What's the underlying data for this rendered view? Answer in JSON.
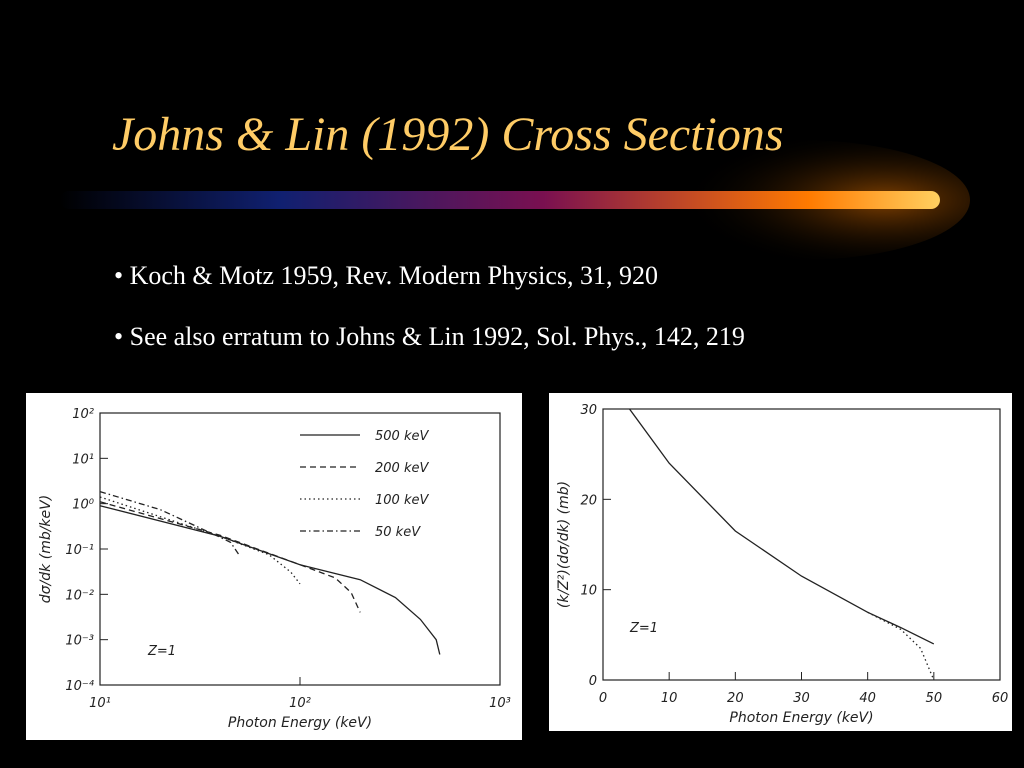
{
  "slide": {
    "title": "Johns & Lin (1992) Cross Sections",
    "bullets": [
      "• Koch & Motz 1959, Rev. Modern Physics, 31, 920",
      "• See also erratum to Johns & Lin 1992, Sol. Phys., 142, 219"
    ]
  },
  "chart_data": [
    {
      "type": "line",
      "xscale": "log",
      "yscale": "log",
      "x_label": "Photon Energy (keV)",
      "y_label": "dσ/dk (mb/keV)",
      "annotation": "Z=1",
      "xlim": [
        10,
        1000
      ],
      "ylim": [
        0.0001,
        100
      ],
      "xticks": [
        {
          "value": 10,
          "label": "10¹"
        },
        {
          "value": 100,
          "label": "10²"
        },
        {
          "value": 1000,
          "label": "10³"
        }
      ],
      "yticks": [
        {
          "value": 0.0001,
          "label": "10⁻⁴"
        },
        {
          "value": 0.001,
          "label": "10⁻³"
        },
        {
          "value": 0.01,
          "label": "10⁻²"
        },
        {
          "value": 0.1,
          "label": "10⁻¹"
        },
        {
          "value": 1,
          "label": "10⁰"
        },
        {
          "value": 10,
          "label": "10¹"
        },
        {
          "value": 100,
          "label": "10²"
        }
      ],
      "legend": "upper right",
      "series": [
        {
          "name": "500 keV",
          "dash": "solid",
          "color": "#222222",
          "x": [
            10,
            40,
            100,
            200,
            300,
            400,
            480,
            500
          ],
          "values": [
            0.9,
            0.19,
            0.045,
            0.021,
            0.0085,
            0.0028,
            0.001,
            0.00047
          ]
        },
        {
          "name": "200 keV",
          "dash": "dashed",
          "color": "#222222",
          "x": [
            10,
            40,
            100,
            150,
            180,
            200
          ],
          "values": [
            1.1,
            0.2,
            0.045,
            0.023,
            0.011,
            0.004
          ]
        },
        {
          "name": "100 keV",
          "dash": "dotted",
          "color": "#222222",
          "x": [
            10,
            40,
            70,
            90,
            100
          ],
          "values": [
            1.4,
            0.19,
            0.075,
            0.031,
            0.017
          ]
        },
        {
          "name": "50 keV",
          "dash": "dashdot",
          "color": "#222222",
          "x": [
            10,
            20,
            40,
            45,
            50
          ],
          "values": [
            1.85,
            0.74,
            0.18,
            0.14,
            0.07
          ]
        }
      ]
    },
    {
      "type": "line",
      "x_label": "Photon Energy (keV)",
      "y_label": "(k/Z²)(dσ/dk) (mb)",
      "annotation": "Z=1",
      "xlim": [
        0,
        60
      ],
      "ylim": [
        0,
        30
      ],
      "xticks": [
        0,
        10,
        20,
        30,
        40,
        50,
        60
      ],
      "yticks": [
        0,
        10,
        20,
        30
      ],
      "series": [
        {
          "dash": "solid",
          "color": "#222222",
          "x": [
            4,
            10,
            20,
            30,
            40,
            45,
            50
          ],
          "values": [
            30,
            24,
            16.5,
            11.5,
            7.5,
            5.8,
            4
          ]
        },
        {
          "dash": "dotted",
          "color": "#222222",
          "x": [
            40,
            45,
            48,
            50
          ],
          "values": [
            7.5,
            5.6,
            3.5,
            0
          ]
        }
      ]
    }
  ]
}
